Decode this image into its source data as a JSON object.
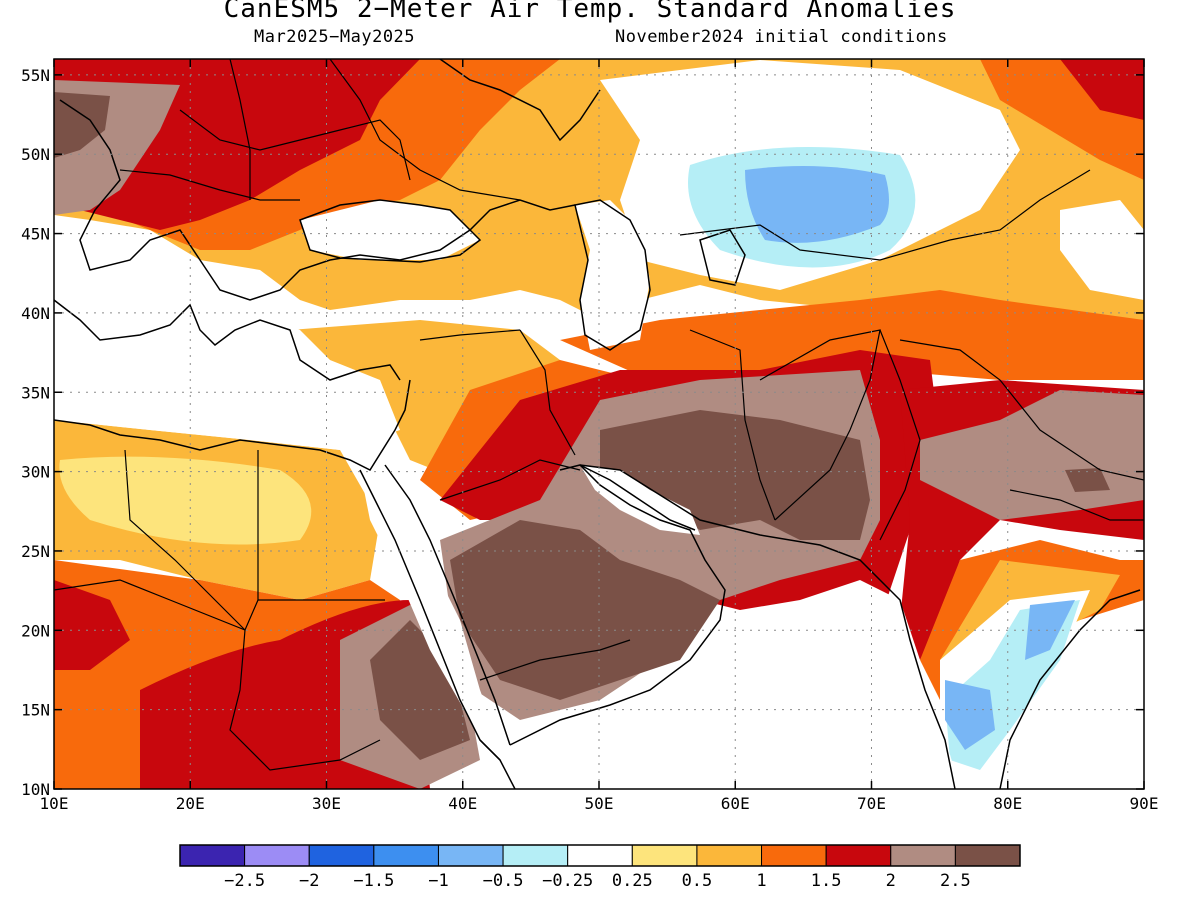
{
  "title": "CanESM5 2−Meter Air Temp. Standard Anomalies",
  "subtitle_left": "Mar2025−May2025",
  "subtitle_right": "November2024 initial conditions",
  "map": {
    "lon_range": [
      10,
      90
    ],
    "lat_range": [
      10,
      56
    ],
    "lon_ticks": [
      "10E",
      "20E",
      "30E",
      "40E",
      "50E",
      "60E",
      "70E",
      "80E",
      "90E"
    ],
    "lat_ticks": [
      "10N",
      "15N",
      "20N",
      "25N",
      "30N",
      "35N",
      "40N",
      "45N",
      "50N",
      "55N"
    ],
    "grid": "dotted"
  },
  "colorbar": {
    "colors": [
      "#3b24b0",
      "#9c8cf5",
      "#1f63e0",
      "#3d8ff0",
      "#78b6f5",
      "#b5eef6",
      "#ffffff",
      "#fde47c",
      "#fbb73a",
      "#f86a0c",
      "#c8070d",
      "#b08c82",
      "#7a5147"
    ],
    "labels": [
      "−2.5",
      "−2",
      "−1.5",
      "−1",
      "−0.5",
      "−0.25",
      "0.25",
      "0.5",
      "1",
      "1.5",
      "2",
      "2.5"
    ]
  }
}
